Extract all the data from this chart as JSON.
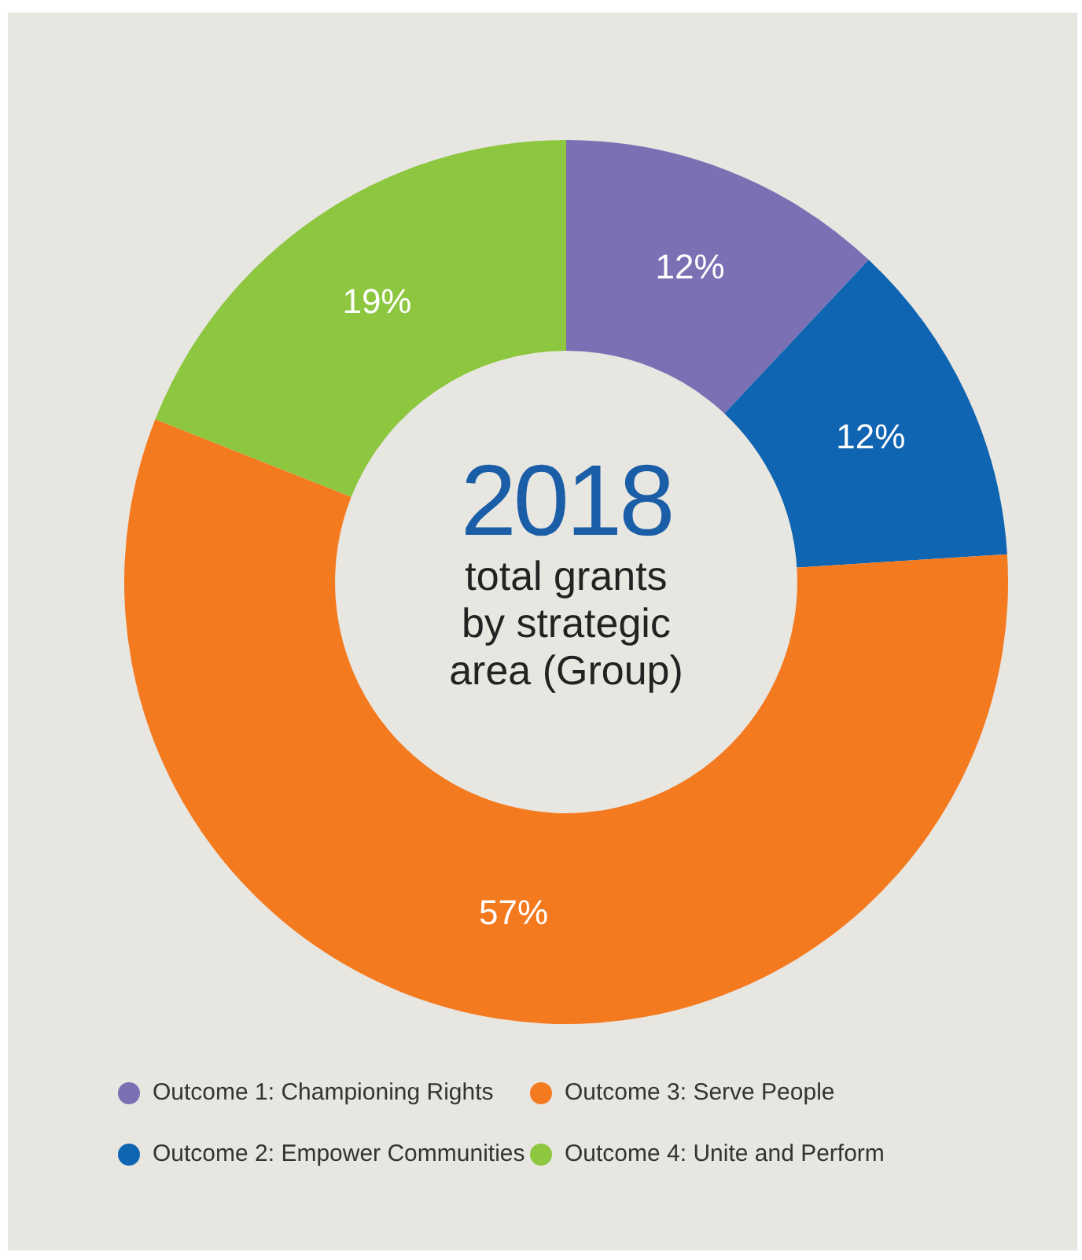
{
  "chart_data": {
    "type": "donut",
    "title": "2018",
    "subtitle": "total grants by strategic area (Group)",
    "categories": [
      "Outcome 1: Championing Rights",
      "Outcome 2: Empower Communities",
      "Outcome 3: Serve People",
      "Outcome 4: Unite and Perform"
    ],
    "values": [
      12,
      12,
      57,
      19
    ],
    "colors": [
      "#7b70b4",
      "#0f65b2",
      "#f47a20",
      "#8dc63f"
    ],
    "value_labels": [
      "12%",
      "12%",
      "57%",
      "19%"
    ],
    "legend": "bottom"
  }
}
